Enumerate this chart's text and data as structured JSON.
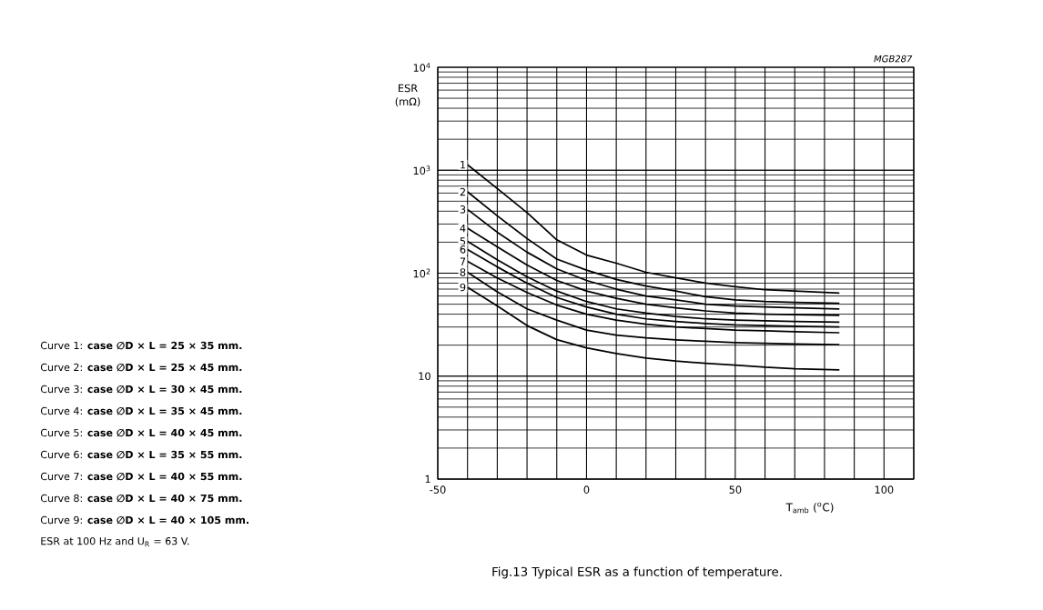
{
  "chart_data": {
    "type": "line",
    "title": "Fig.13  Typical ESR as a function of temperature.",
    "xlabel": "T$_{amb}$ ($^{o}$C)",
    "ylabel": "ESR (mΩ)",
    "log": "y",
    "grid": true,
    "xlim": [
      -50,
      110
    ],
    "ylim": [
      1,
      10000
    ],
    "xticks": [
      -50,
      {
        "value": -40,
        "label": null
      },
      {
        "value": -30,
        "label": null
      },
      {
        "value": -20,
        "label": null
      },
      {
        "value": -10,
        "label": null
      },
      0,
      {
        "value": 10,
        "label": null
      },
      {
        "value": 20,
        "label": null
      },
      {
        "value": 30,
        "label": null
      },
      {
        "value": 40,
        "label": null
      },
      50,
      {
        "value": 60,
        "label": null
      },
      {
        "value": 70,
        "label": null
      },
      {
        "value": 80,
        "label": null
      },
      {
        "value": 90,
        "label": null
      },
      100,
      {
        "value": 110,
        "label": null
      }
    ],
    "yticks": [
      1,
      10,
      {
        "value": 100,
        "label": "10$^{2}$"
      },
      {
        "value": 1000,
        "label": "10$^{3}$"
      },
      {
        "value": 10000,
        "label": "10$^{4}$"
      }
    ],
    "x": [
      -40,
      -30,
      -20,
      -10,
      0,
      10,
      20,
      30,
      40,
      50,
      60,
      70,
      85
    ],
    "series": [
      {
        "name": "1",
        "color": "#000000",
        "values": [
          1130,
          665,
          387,
          211,
          150,
          125,
          102,
          90,
          80,
          74,
          69,
          67,
          64
        ]
      },
      {
        "name": "2",
        "color": "#000000",
        "values": [
          617,
          361,
          217,
          137,
          107,
          87,
          75,
          67,
          59,
          55,
          53,
          52,
          51
        ]
      },
      {
        "name": "3",
        "color": "#000000",
        "values": [
          416,
          250,
          160,
          110,
          85,
          70,
          60,
          55,
          50,
          48,
          47,
          46,
          45
        ]
      },
      {
        "name": "4",
        "color": "#000000",
        "values": [
          273,
          180,
          120,
          85,
          67,
          57,
          50,
          46,
          43,
          41,
          40,
          39.5,
          39
        ]
      },
      {
        "name": "5",
        "color": "#000000",
        "values": [
          204,
          135,
          92,
          67,
          53,
          45,
          41,
          38,
          36,
          35,
          34.5,
          34,
          33.5
        ]
      },
      {
        "name": "6",
        "color": "#000000",
        "values": [
          170,
          115,
          80,
          58,
          47,
          40,
          36,
          34,
          32.5,
          31.5,
          31,
          30.5,
          30
        ]
      },
      {
        "name": "7",
        "color": "#000000",
        "values": [
          130,
          90,
          65,
          49,
          40,
          35,
          32,
          30,
          29,
          28,
          27.5,
          27,
          26.4
        ]
      },
      {
        "name": "8",
        "color": "#000000",
        "values": [
          102,
          66,
          45,
          35,
          28,
          25,
          23.5,
          22.5,
          21.8,
          21.2,
          20.8,
          20.5,
          20.2
        ]
      },
      {
        "name": "9",
        "color": "#000000",
        "values": [
          73,
          48,
          31,
          22.6,
          18.8,
          16.6,
          15,
          14,
          13.3,
          12.8,
          12.2,
          11.8,
          11.5
        ]
      }
    ],
    "annotations": [
      "Curve 1: **case ∅D × L = 25 × 35 mm.**",
      "Curve 2: **case ∅D × L = 25 × 45 mm.**",
      "Curve 3: **case ∅D × L = 30 × 45 mm.**",
      "Curve 4: **case ∅D × L = 35 × 45 mm.**",
      "Curve 5: **case ∅D × L = 40 × 45 mm.**",
      "Curve 6: **case ∅D × L = 35 × 55 mm.**",
      "Curve 7: **case ∅D × L = 40 × 55 mm.**",
      "Curve 8: **case ∅D × L = 40 × 75 mm.**",
      "Curve 9: **case ∅D × L = 40 × 105 mm.**",
      "ESR at 100 Hz and U$_{R}$ = 63 V.",
      "MGB287"
    ]
  }
}
